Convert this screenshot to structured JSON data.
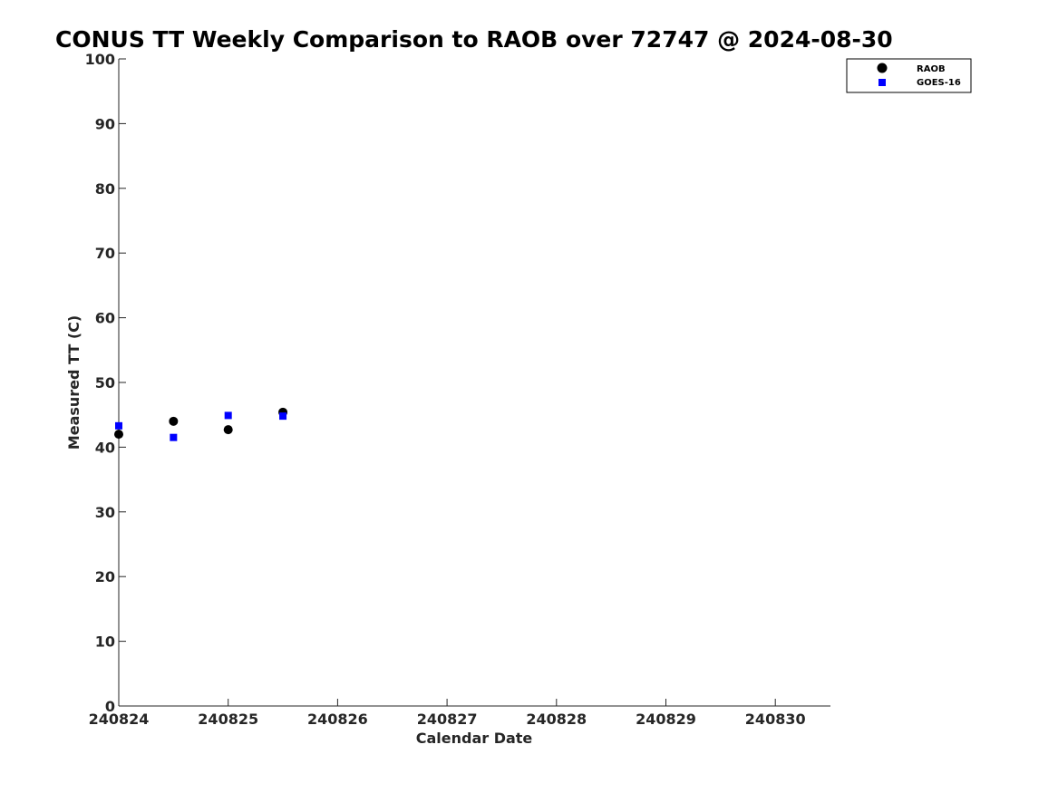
{
  "chart_data": {
    "type": "scatter",
    "title": "CONUS TT Weekly Comparison to RAOB over 72747 @ 2024-08-30",
    "xlabel": "Calendar Date",
    "ylabel": "Measured TT (C)",
    "xlim": [
      240824,
      240830.5
    ],
    "ylim": [
      0,
      100
    ],
    "xticks": [
      240824,
      240825,
      240826,
      240827,
      240828,
      240829,
      240830
    ],
    "xtick_labels": [
      "240824",
      "240825",
      "240826",
      "240827",
      "240828",
      "240829",
      "240830"
    ],
    "yticks": [
      0,
      10,
      20,
      30,
      40,
      50,
      60,
      70,
      80,
      90,
      100
    ],
    "ytick_labels": [
      "0",
      "10",
      "20",
      "30",
      "40",
      "50",
      "60",
      "70",
      "80",
      "90",
      "100"
    ],
    "grid": false,
    "legend_position": "top-right",
    "series": [
      {
        "name": "RAOB",
        "marker": "circle",
        "color": "#000000",
        "x": [
          240824,
          240824.5,
          240825,
          240825.5
        ],
        "y": [
          42.0,
          44.0,
          42.7,
          45.4
        ]
      },
      {
        "name": "GOES-16",
        "marker": "square",
        "color": "#0000ff",
        "x": [
          240824,
          240824.5,
          240825,
          240825.5
        ],
        "y": [
          43.3,
          41.5,
          44.9,
          44.8
        ]
      }
    ]
  },
  "colors": {
    "axis": "#262626",
    "background": "#ffffff"
  }
}
